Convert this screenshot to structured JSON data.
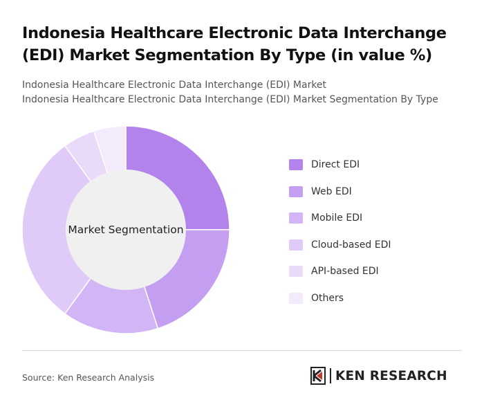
{
  "title": "Indonesia Healthcare Electronic Data Interchange (EDI) Market Segmentation By Type (in value %)",
  "subtitle_line1": "Indonesia Healthcare Electronic Data Interchange (EDI) Market",
  "subtitle_line2": "Indonesia Healthcare Electronic Data Interchange (EDI) Market Segmentation By Type",
  "source": "Source: Ken Research Analysis",
  "logo_text": "KEN RESEARCH",
  "chart_data": {
    "type": "pie",
    "variant": "donut",
    "center_label": "Market Segmentation",
    "legend_position": "right",
    "categories": [
      "Direct EDI",
      "Web EDI",
      "Mobile EDI",
      "Cloud-based EDI",
      "API-based EDI",
      "Others"
    ],
    "values": [
      25,
      20,
      15,
      30,
      5,
      5
    ],
    "colors": [
      "#b383ec",
      "#c49ef1",
      "#d2b5f5",
      "#dfcaf8",
      "#e9daf9",
      "#f3ebfc"
    ]
  }
}
